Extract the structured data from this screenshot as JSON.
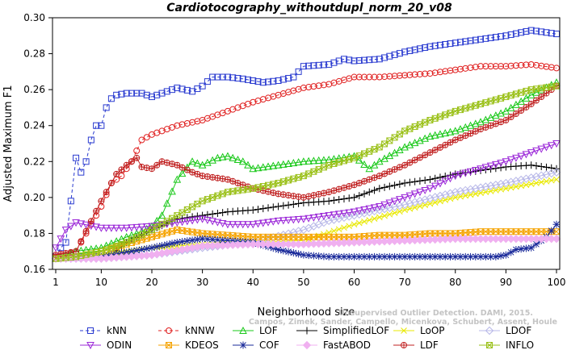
{
  "chart_data": {
    "type": "line",
    "title": "Cardiotocography_withoutdupl_norm_20_v08",
    "xlabel": "Neighborhood size",
    "ylabel": "Adjusted Maximum F1",
    "xlim": [
      1,
      100
    ],
    "ylim": [
      0.16,
      0.3
    ],
    "xticks": [
      1,
      10,
      20,
      30,
      40,
      50,
      60,
      70,
      80,
      90,
      100
    ],
    "yticks": [
      0.16,
      0.18,
      0.2,
      0.22,
      0.24,
      0.26,
      0.28,
      0.3
    ],
    "legend_position": "bottom",
    "grid": false,
    "watermark": [
      "Unsupervised Outlier Detection. DAMI, 2015.",
      "Campos, Zimek, Sander, Campello, Micenkova, Schubert, Assent, Houle"
    ],
    "series": [
      {
        "name": "kNN",
        "color": "#2a3bd0",
        "marker": "square",
        "dashed": true,
        "x": [
          1,
          2,
          3,
          4,
          5,
          6,
          7,
          8,
          9,
          10,
          11,
          12,
          13,
          15,
          18,
          20,
          25,
          28,
          30,
          32,
          35,
          38,
          40,
          42,
          45,
          48,
          50,
          55,
          58,
          60,
          65,
          70,
          75,
          80,
          85,
          90,
          95,
          100
        ],
        "y": [
          0.167,
          0.172,
          0.175,
          0.198,
          0.222,
          0.214,
          0.22,
          0.232,
          0.24,
          0.24,
          0.25,
          0.255,
          0.257,
          0.258,
          0.258,
          0.256,
          0.261,
          0.259,
          0.262,
          0.267,
          0.267,
          0.266,
          0.265,
          0.264,
          0.265,
          0.267,
          0.273,
          0.274,
          0.277,
          0.276,
          0.277,
          0.281,
          0.284,
          0.286,
          0.288,
          0.29,
          0.293,
          0.291
        ]
      },
      {
        "name": "kNNW",
        "color": "#e02020",
        "marker": "circle",
        "dashed": true,
        "x": [
          1,
          3,
          5,
          7,
          9,
          10,
          12,
          14,
          16,
          18,
          20,
          25,
          30,
          35,
          40,
          45,
          50,
          55,
          60,
          65,
          70,
          75,
          80,
          85,
          90,
          95,
          100
        ],
        "y": [
          0.167,
          0.168,
          0.17,
          0.18,
          0.19,
          0.195,
          0.208,
          0.212,
          0.22,
          0.232,
          0.235,
          0.24,
          0.243,
          0.248,
          0.253,
          0.257,
          0.261,
          0.263,
          0.267,
          0.267,
          0.268,
          0.269,
          0.271,
          0.273,
          0.273,
          0.274,
          0.272
        ]
      },
      {
        "name": "LOF",
        "color": "#18c818",
        "marker": "triangle-up",
        "x": [
          1,
          5,
          10,
          15,
          18,
          20,
          22,
          25,
          28,
          30,
          33,
          35,
          38,
          40,
          45,
          50,
          55,
          60,
          63,
          65,
          70,
          75,
          80,
          85,
          90,
          95,
          100
        ],
        "y": [
          0.166,
          0.17,
          0.172,
          0.178,
          0.181,
          0.184,
          0.19,
          0.21,
          0.22,
          0.218,
          0.222,
          0.223,
          0.22,
          0.216,
          0.218,
          0.22,
          0.221,
          0.223,
          0.216,
          0.22,
          0.228,
          0.234,
          0.237,
          0.242,
          0.248,
          0.257,
          0.264
        ]
      },
      {
        "name": "SimplifiedLOF",
        "color": "#000000",
        "marker": "plus",
        "x": [
          1,
          5,
          10,
          12,
          15,
          20,
          25,
          30,
          35,
          40,
          45,
          50,
          55,
          60,
          65,
          70,
          75,
          80,
          85,
          90,
          95,
          100
        ],
        "y": [
          0.166,
          0.166,
          0.167,
          0.168,
          0.175,
          0.182,
          0.188,
          0.19,
          0.192,
          0.193,
          0.195,
          0.197,
          0.198,
          0.2,
          0.205,
          0.208,
          0.21,
          0.213,
          0.215,
          0.217,
          0.218,
          0.216
        ]
      },
      {
        "name": "LoOP",
        "color": "#e8e800",
        "marker": "x",
        "x": [
          1,
          10,
          20,
          30,
          40,
          50,
          60,
          70,
          80,
          90,
          100
        ],
        "y": [
          0.166,
          0.168,
          0.172,
          0.174,
          0.175,
          0.176,
          0.185,
          0.193,
          0.2,
          0.205,
          0.21
        ]
      },
      {
        "name": "LDOF",
        "color": "#b8b8e8",
        "marker": "diamond",
        "x": [
          1,
          10,
          20,
          30,
          40,
          50,
          55,
          60,
          70,
          80,
          90,
          100
        ],
        "y": [
          0.166,
          0.166,
          0.168,
          0.172,
          0.175,
          0.182,
          0.187,
          0.19,
          0.196,
          0.203,
          0.208,
          0.214
        ]
      },
      {
        "name": "ODIN",
        "color": "#9b28d8",
        "marker": "triangle-down",
        "x": [
          1,
          3,
          5,
          10,
          15,
          20,
          25,
          30,
          35,
          40,
          45,
          50,
          55,
          60,
          65,
          70,
          75,
          80,
          85,
          90,
          95,
          100
        ],
        "y": [
          0.172,
          0.182,
          0.186,
          0.183,
          0.183,
          0.184,
          0.186,
          0.188,
          0.185,
          0.185,
          0.187,
          0.188,
          0.19,
          0.192,
          0.195,
          0.2,
          0.205,
          0.212,
          0.216,
          0.22,
          0.225,
          0.23
        ]
      },
      {
        "name": "KDEOS",
        "color": "#f5a300",
        "marker": "square-x",
        "x": [
          1,
          5,
          10,
          15,
          20,
          25,
          30,
          35,
          40,
          45,
          50,
          55,
          60,
          65,
          70,
          75,
          80,
          85,
          90,
          95,
          100
        ],
        "y": [
          0.166,
          0.167,
          0.17,
          0.174,
          0.178,
          0.182,
          0.18,
          0.179,
          0.178,
          0.178,
          0.178,
          0.178,
          0.178,
          0.179,
          0.179,
          0.18,
          0.18,
          0.181,
          0.181,
          0.181,
          0.181
        ]
      },
      {
        "name": "COF",
        "color": "#1a2a9a",
        "marker": "asterisk",
        "x": [
          1,
          10,
          20,
          25,
          30,
          35,
          40,
          45,
          50,
          55,
          60,
          65,
          70,
          75,
          80,
          85,
          88,
          90,
          92,
          95,
          98,
          100
        ],
        "y": [
          0.166,
          0.167,
          0.172,
          0.175,
          0.177,
          0.176,
          0.175,
          0.171,
          0.168,
          0.167,
          0.167,
          0.167,
          0.167,
          0.167,
          0.167,
          0.167,
          0.167,
          0.168,
          0.171,
          0.172,
          0.178,
          0.185
        ]
      },
      {
        "name": "FastABOD",
        "color": "#f0b0f0",
        "marker": "diamond-filled",
        "x": [
          1,
          10,
          20,
          30,
          40,
          50,
          60,
          70,
          80,
          90,
          100
        ],
        "y": [
          0.166,
          0.166,
          0.168,
          0.173,
          0.174,
          0.174,
          0.175,
          0.176,
          0.177,
          0.177,
          0.177
        ]
      },
      {
        "name": "LDF",
        "color": "#c02020",
        "marker": "circle-plus",
        "x": [
          1,
          5,
          10,
          13,
          15,
          17,
          18,
          20,
          22,
          25,
          28,
          30,
          35,
          40,
          45,
          50,
          55,
          60,
          65,
          70,
          75,
          80,
          85,
          90,
          95,
          100
        ],
        "y": [
          0.168,
          0.17,
          0.198,
          0.213,
          0.218,
          0.222,
          0.217,
          0.216,
          0.22,
          0.218,
          0.214,
          0.212,
          0.21,
          0.205,
          0.202,
          0.2,
          0.203,
          0.207,
          0.212,
          0.218,
          0.225,
          0.232,
          0.238,
          0.243,
          0.252,
          0.262
        ]
      },
      {
        "name": "INFLO",
        "color": "#9ac018",
        "marker": "square-x",
        "x": [
          1,
          5,
          10,
          15,
          20,
          25,
          30,
          35,
          40,
          45,
          50,
          55,
          60,
          65,
          70,
          75,
          80,
          85,
          90,
          95,
          100
        ],
        "y": [
          0.166,
          0.167,
          0.17,
          0.175,
          0.182,
          0.19,
          0.198,
          0.203,
          0.205,
          0.208,
          0.212,
          0.218,
          0.222,
          0.228,
          0.237,
          0.243,
          0.248,
          0.252,
          0.256,
          0.26,
          0.262
        ]
      }
    ]
  }
}
